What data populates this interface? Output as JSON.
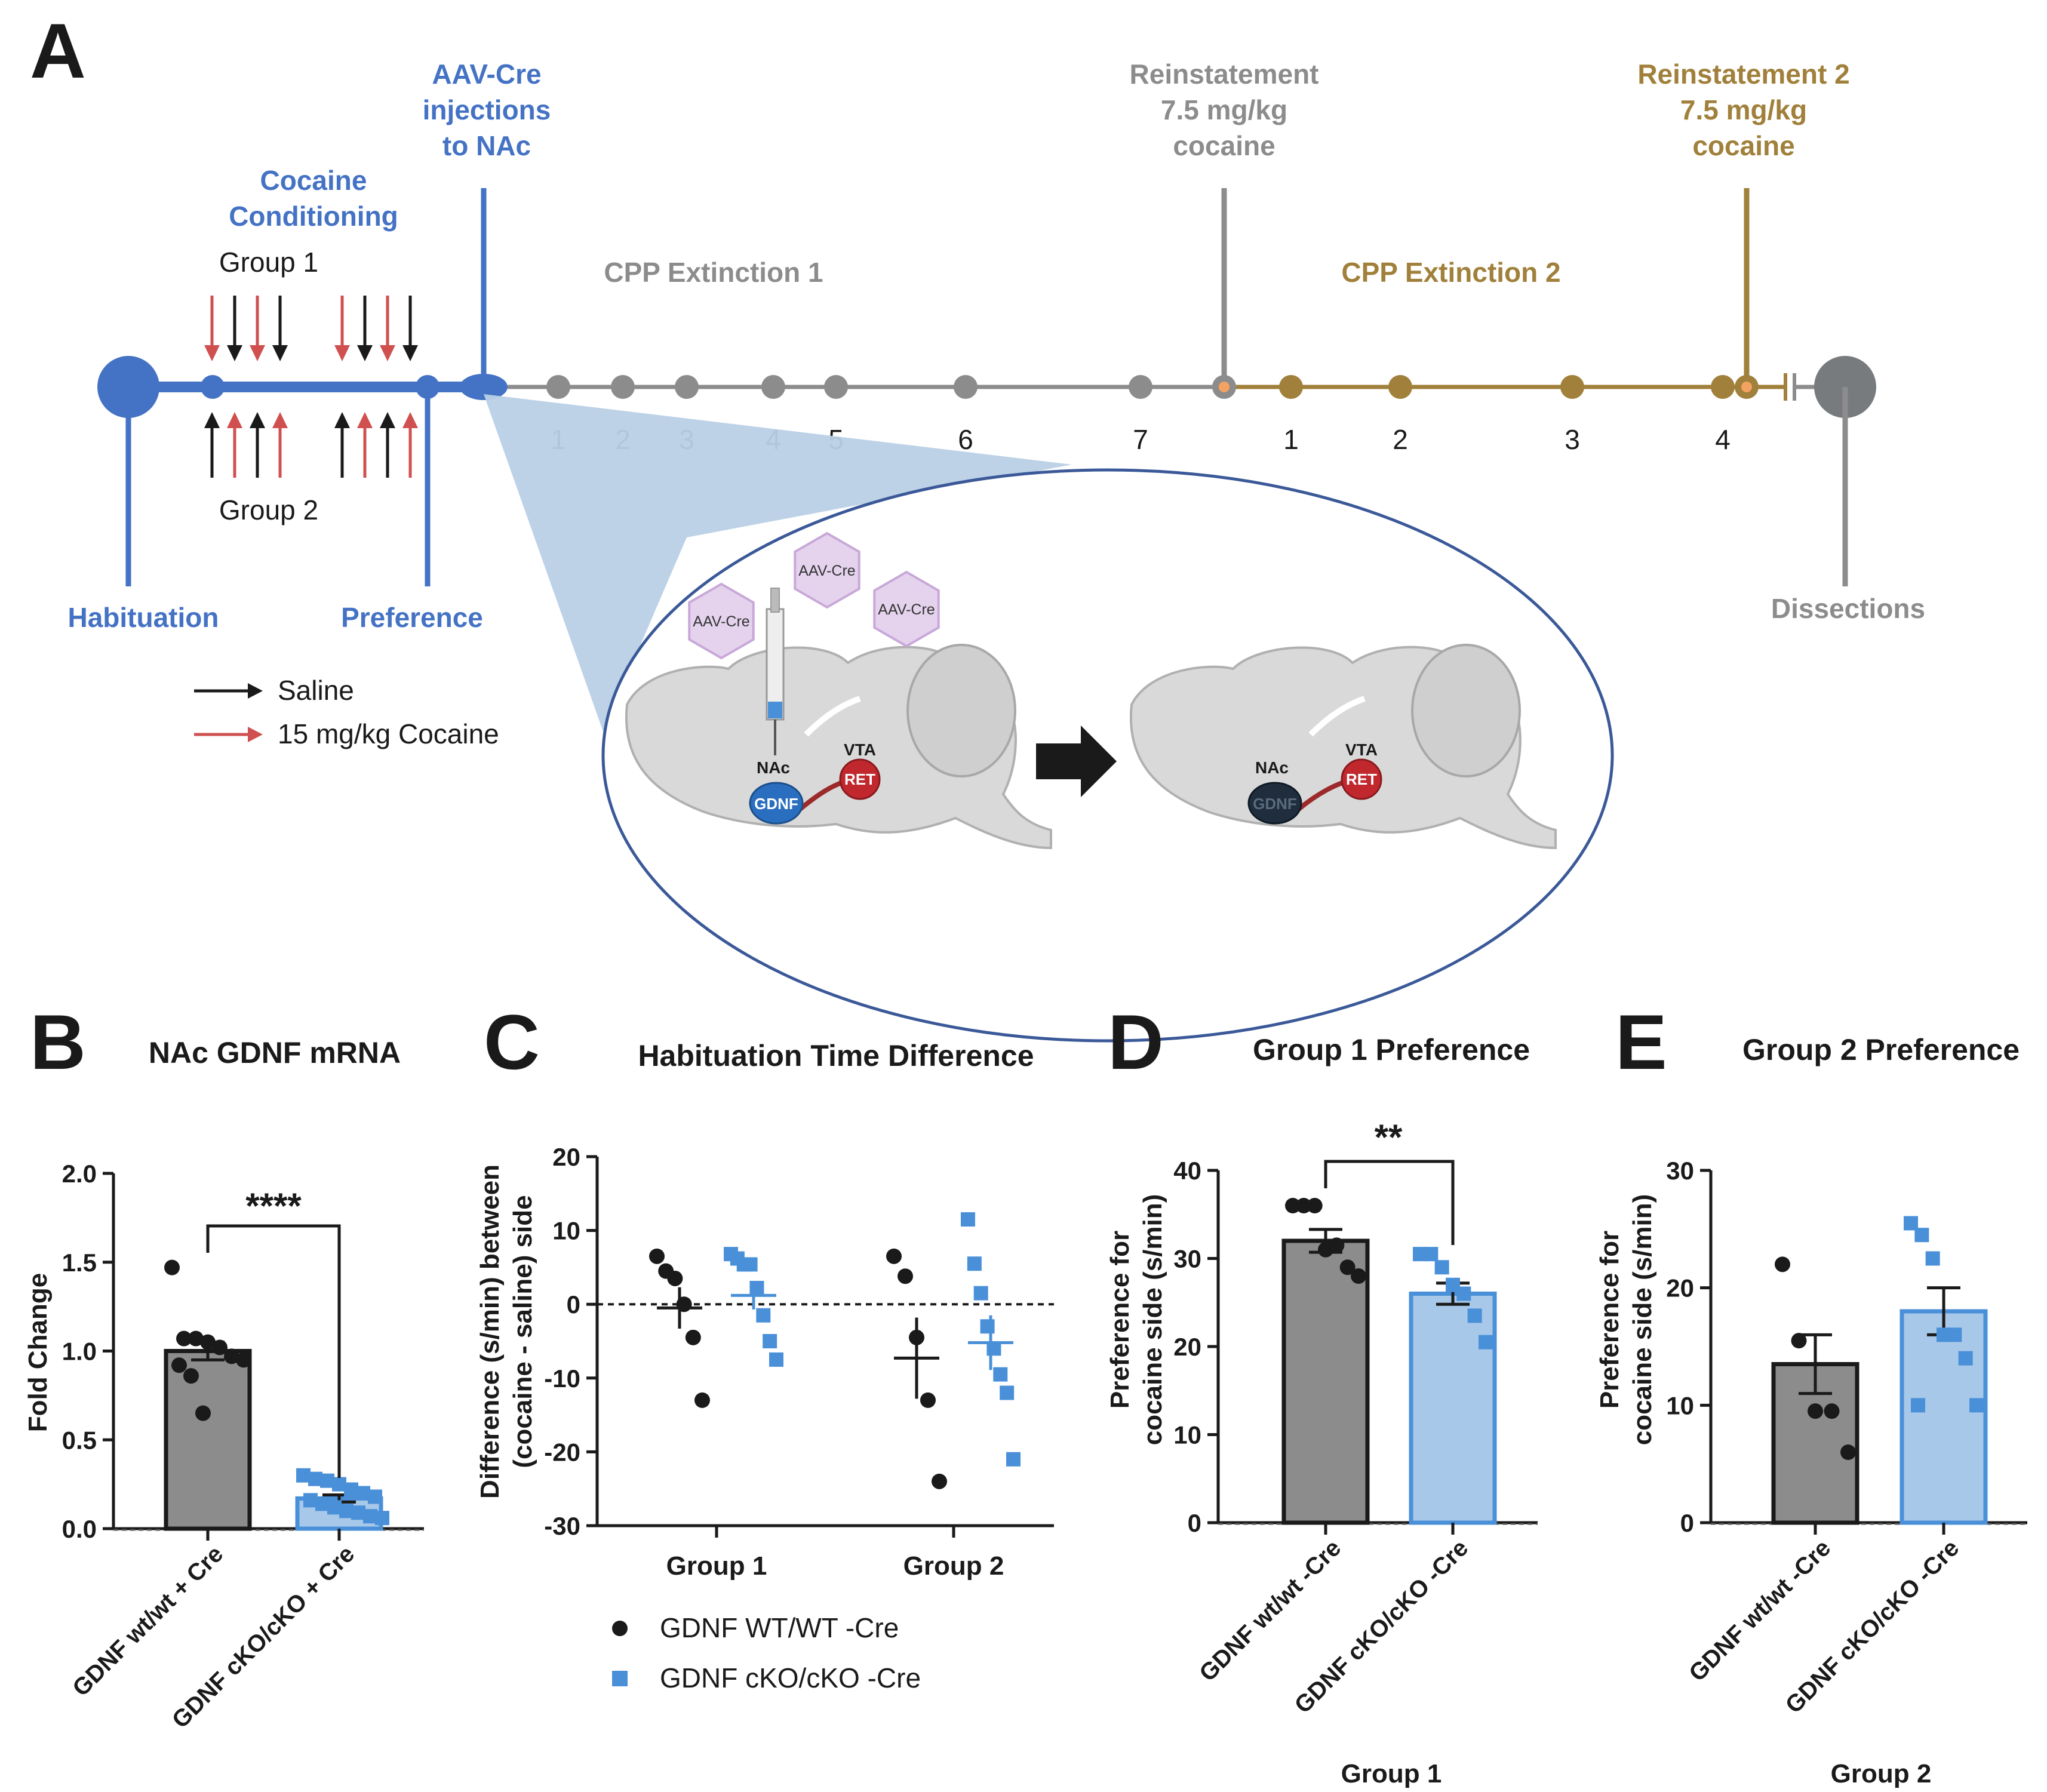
{
  "colors": {
    "blue": "#4472c4",
    "grey": "#8c8c8c",
    "gold": "#a0803a",
    "black": "#1a1a1a",
    "red": "#d05050",
    "lightblue": "#a7c8e8",
    "pointblue": "#4a90d9",
    "bargrey": "#8c8c8c",
    "violet": "#c8a8d8"
  },
  "panelA": {
    "letter": "A",
    "injection_label": [
      "AAV-Cre",
      "injections",
      "to NAc"
    ],
    "reinstatement1_label": [
      "Reinstatement",
      "7.5 mg/kg",
      "cocaine"
    ],
    "reinstatement2_label": [
      "Reinstatement 2",
      "7.5 mg/kg",
      "cocaine"
    ],
    "conditioning_label": [
      "Cocaine",
      "Conditioning"
    ],
    "group1": "Group 1",
    "group2": "Group 2",
    "extinction1": "CPP Extinction 1",
    "extinction2": "CPP Extinction 2",
    "ext1_days": [
      "1",
      "2",
      "3",
      "4",
      "5",
      "6",
      "7"
    ],
    "ext2_days": [
      "1",
      "2",
      "3",
      "4"
    ],
    "habituation": "Habituation",
    "preference": "Preference",
    "dissections": "Dissections",
    "legend_saline": "Saline",
    "legend_cocaine": "15 mg/kg Cocaine",
    "virus_label": "AAV-Cre",
    "nac": "NAc",
    "vta": "VTA",
    "gdnf": "GDNF",
    "ret": "RET"
  },
  "panelB": {
    "letter": "B",
    "title": "NAc GDNF mRNA",
    "significance": "****",
    "chart_data": {
      "type": "bar",
      "title": "NAc GDNF mRNA",
      "ylabel": "Fold Change",
      "ylim": [
        0,
        2.0
      ],
      "yticks": [
        "0.0",
        "0.5",
        "1.0",
        "1.5",
        "2.0"
      ],
      "categories": [
        "GDNF wt/wt + Cre",
        "GDNF cKO/cKO + Cre"
      ],
      "values": [
        1.0,
        0.17
      ],
      "sem": [
        0.05,
        0.02
      ],
      "points": [
        [
          1.47,
          1.07,
          1.07,
          1.05,
          1.02,
          0.97,
          0.95,
          0.92,
          0.86,
          0.65
        ],
        [
          0.3,
          0.28,
          0.27,
          0.25,
          0.22,
          0.2,
          0.18,
          0.16,
          0.14,
          0.12,
          0.1,
          0.09,
          0.07,
          0.06
        ]
      ]
    }
  },
  "panelC": {
    "letter": "C",
    "title": "Habituation Time Difference",
    "legend": [
      "GDNF WT/WT -Cre",
      "GDNF cKO/cKO -Cre"
    ],
    "chart_data": {
      "type": "scatter",
      "title": "Habituation Time Difference",
      "ylabel": [
        "Difference (s/min) between",
        "(cocaine - saline) side"
      ],
      "ylim": [
        -30,
        20
      ],
      "yticks": [
        "-30",
        "-20",
        "-10",
        "0",
        "10",
        "20"
      ],
      "categories": [
        "Group 1",
        "Group 2"
      ],
      "series": [
        {
          "name": "GDNF WT/WT -Cre",
          "means": [
            -0.5,
            -7.3
          ],
          "sem": [
            2.8,
            5.5
          ],
          "points": [
            [
              6.5,
              4.5,
              3.5,
              0,
              -4.5,
              -13
            ],
            [
              6.5,
              3.8,
              -4.5,
              -13,
              -24
            ]
          ]
        },
        {
          "name": "GDNF cKO/cKO -Cre",
          "means": [
            1.2,
            -5.2
          ],
          "sem": [
            1.9,
            3.7
          ],
          "points": [
            [
              6.8,
              6.2,
              5.4,
              5.4,
              2.2,
              -1.5,
              -5,
              -7.5
            ],
            [
              11.5,
              5.5,
              1.5,
              -3,
              -6,
              -9.5,
              -12,
              -21
            ]
          ]
        }
      ]
    }
  },
  "panelD": {
    "letter": "D",
    "title": "Group 1 Preference",
    "significance": "**",
    "chart_data": {
      "type": "bar",
      "title": "Group 1 Preference",
      "ylabel": [
        "Preference for",
        "cocaine side (s/min)"
      ],
      "xlabel": "Group 1",
      "ylim": [
        0,
        40
      ],
      "yticks": [
        "0",
        "10",
        "20",
        "30",
        "40"
      ],
      "categories": [
        "GDNF wt/wt -Cre",
        "GDNF cKO/cKO -Cre"
      ],
      "values": [
        32,
        26
      ],
      "sem": [
        1.3,
        1.2
      ],
      "points": [
        [
          36,
          36,
          36,
          31,
          31.5,
          29,
          28
        ],
        [
          30.5,
          30.5,
          29,
          27,
          26,
          23.5,
          20.5
        ]
      ]
    }
  },
  "panelE": {
    "letter": "E",
    "title": "Group 2 Preference",
    "chart_data": {
      "type": "bar",
      "title": "Group 2 Preference",
      "ylabel": [
        "Preference for",
        "cocaine side (s/min)"
      ],
      "xlabel": "Group 2",
      "ylim": [
        0,
        30
      ],
      "yticks": [
        "0",
        "10",
        "20",
        "30"
      ],
      "categories": [
        "GDNF wt/wt -Cre",
        "GDNF cKO/cKO -Cre"
      ],
      "values": [
        13.5,
        18
      ],
      "sem": [
        2.5,
        2.0
      ],
      "points": [
        [
          22,
          15.5,
          9.5,
          9.5,
          6
        ],
        [
          25.5,
          24.5,
          22.5,
          16,
          16,
          14,
          10,
          10
        ]
      ]
    }
  }
}
